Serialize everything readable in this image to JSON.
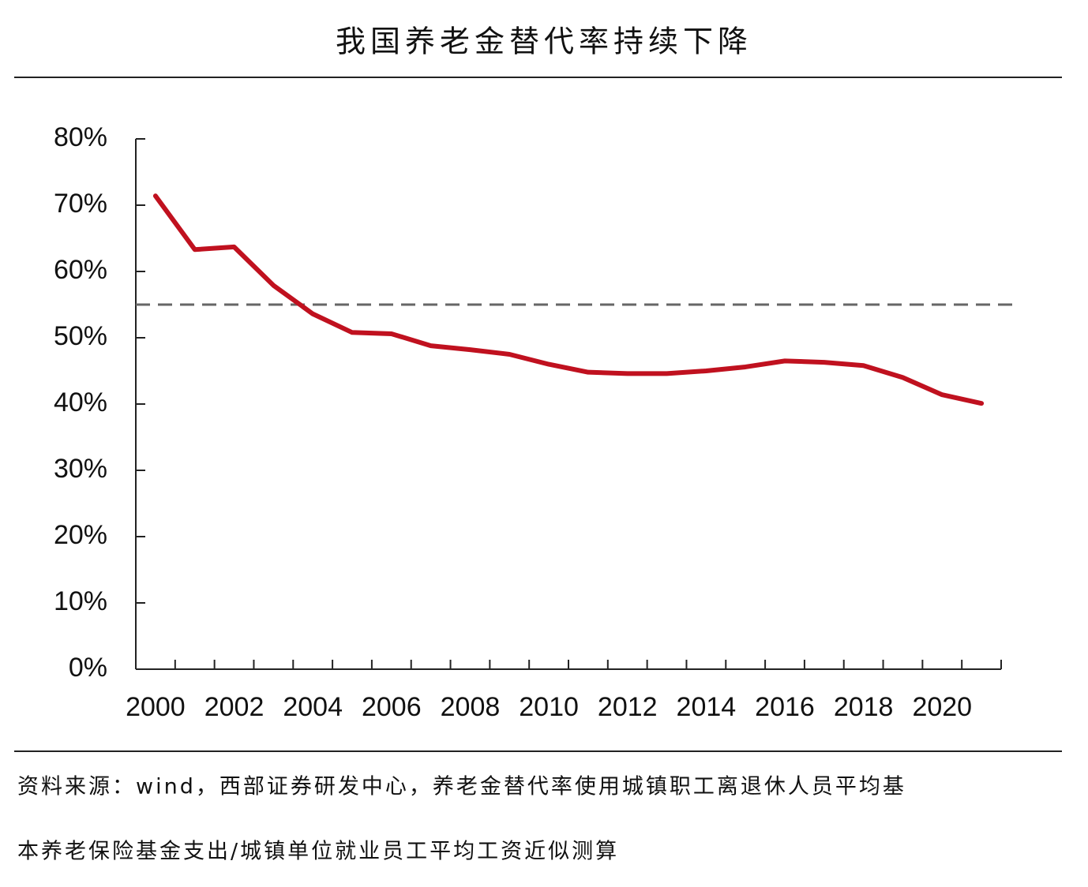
{
  "chart_data": {
    "type": "line",
    "title": "我国养老金替代率持续下降",
    "categories": [
      "2000",
      null,
      "2002",
      null,
      "2004",
      null,
      "2006",
      null,
      "2008",
      null,
      "2010",
      null,
      "2012",
      null,
      "2014",
      null,
      "2016",
      null,
      "2018",
      null,
      "2020",
      null
    ],
    "values": [
      71.4,
      63.3,
      63.7,
      57.9,
      53.6,
      50.8,
      50.6,
      48.8,
      48.2,
      47.5,
      46.0,
      44.8,
      44.6,
      44.6,
      45.0,
      45.6,
      46.5,
      46.3,
      45.8,
      44.0,
      41.4,
      40.1
    ],
    "color": "#c0111f",
    "reference_line": 55,
    "reference_color": "#666666",
    "ylim": [
      0,
      80
    ],
    "yticks": [
      {
        "value": 0,
        "label": "0%"
      },
      {
        "value": 10,
        "label": "10%"
      },
      {
        "value": 20,
        "label": "20%"
      },
      {
        "value": 30,
        "label": "30%"
      },
      {
        "value": 40,
        "label": "40%"
      },
      {
        "value": 50,
        "label": "50%"
      },
      {
        "value": 60,
        "label": "60%"
      },
      {
        "value": 70,
        "label": "70%"
      },
      {
        "value": 80,
        "label": "80%"
      }
    ],
    "source_lines": [
      "资料来源：wind，西部证券研发中心，养老金替代率使用城镇职工离退休人员平均基",
      "本养老保险基金支出/城镇单位就业员工平均工资近似测算"
    ]
  }
}
